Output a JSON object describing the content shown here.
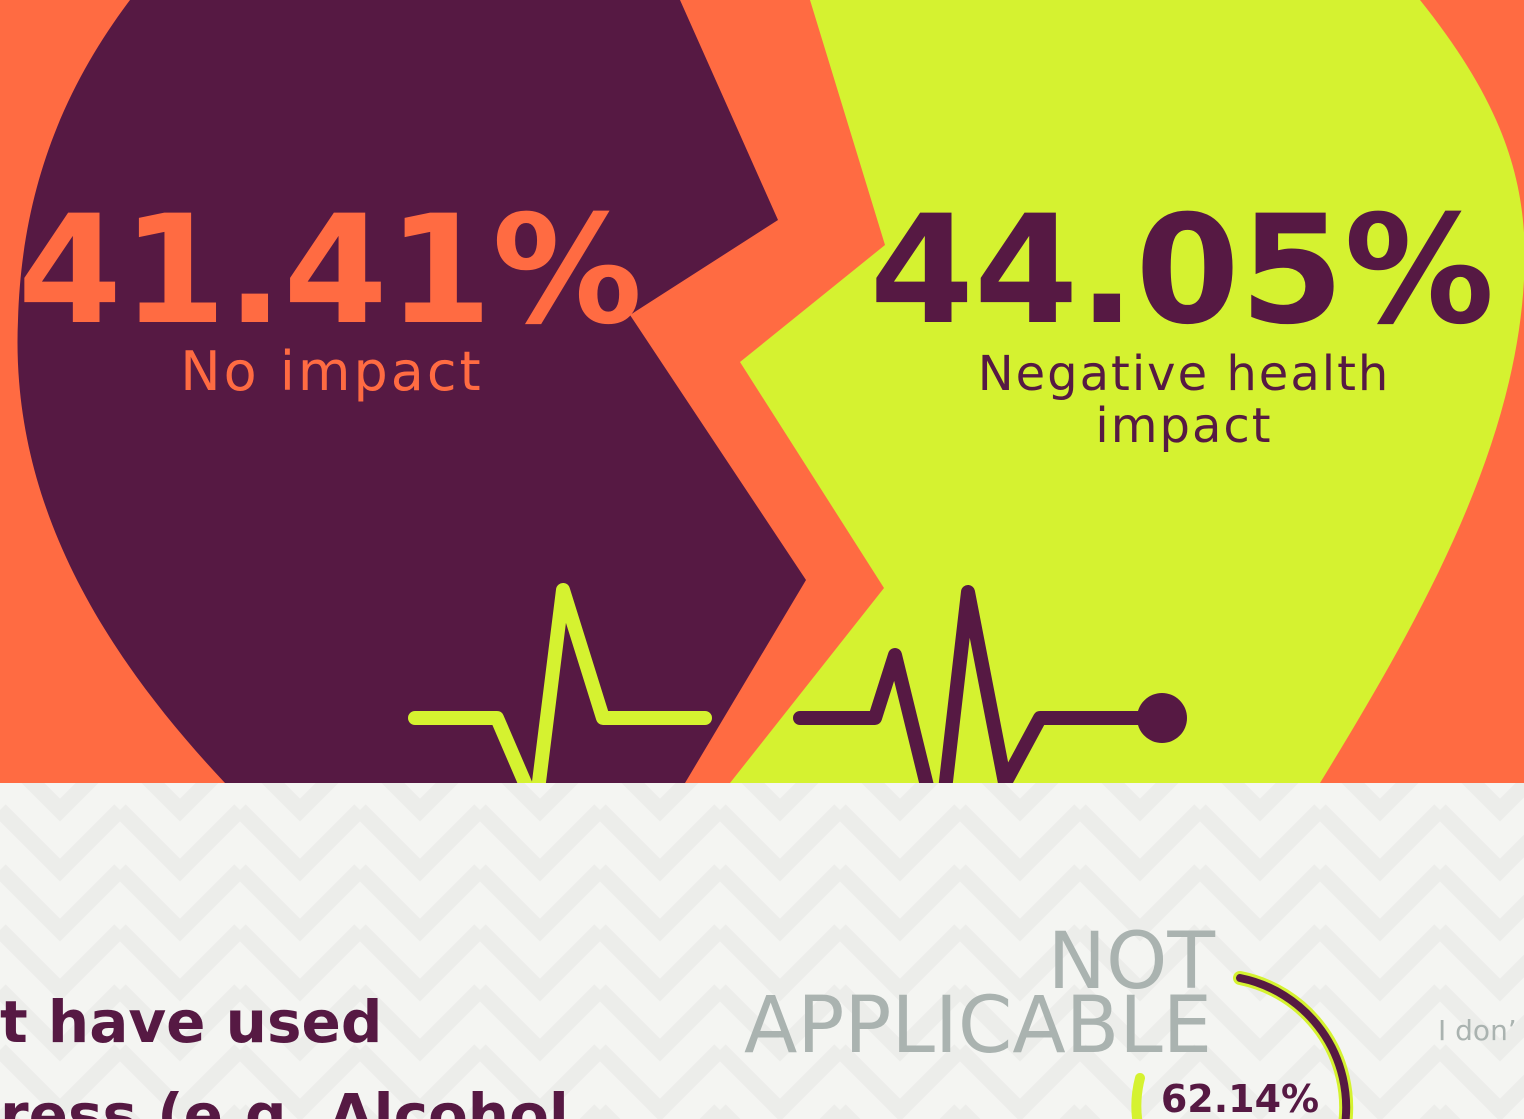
{
  "top": {
    "left": {
      "value": "41.41%",
      "label": "No impact"
    },
    "right": {
      "value": "44.05%",
      "label_lines": [
        "Negative health",
        "impact"
      ]
    }
  },
  "bottom": {
    "heading_lines": [
      "t have used",
      "ress (e.g. Alcohol"
    ],
    "category_lines": [
      "NOT",
      "APPLICABLE"
    ],
    "percent": "62.14%",
    "side_label": "I don’"
  }
}
